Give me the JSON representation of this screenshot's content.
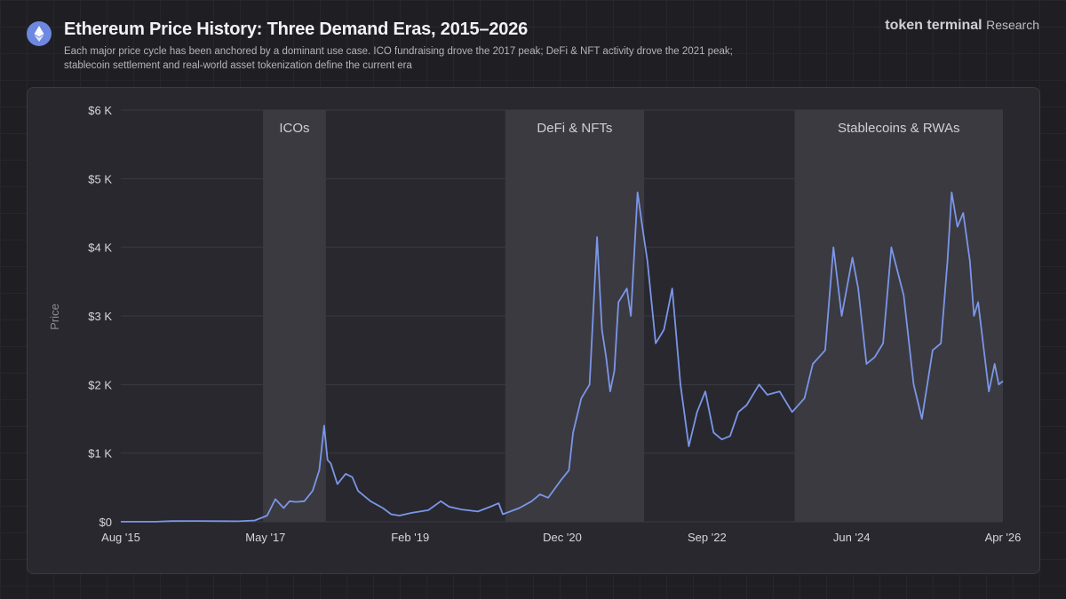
{
  "header": {
    "title": "Ethereum Price History: Three Demand Eras, 2015–2026",
    "subtitle": "Each major price cycle has been anchored by a dominant use case. ICO fundraising drove the 2017 peak; DeFi & NFT activity drove the 2021 peak; stablecoin settlement and real-world asset tokenization define the current era",
    "logo_icon": "ethereum-icon",
    "brand_name": "token terminal",
    "brand_suffix": "Research"
  },
  "chart_data": {
    "type": "line",
    "title": "Ethereum Price History: Three Demand Eras, 2015–2026",
    "ylabel": "Price",
    "xlabel": "",
    "xlim": [
      "2015-08",
      "2026-04"
    ],
    "ylim": [
      0,
      6000
    ],
    "grid": "horizontal",
    "line_color": "#7b96e8",
    "band_color": "#3a3a40",
    "y_ticks": [
      "$0",
      "$1 K",
      "$2 K",
      "$3 K",
      "$4 K",
      "$5 K",
      "$6 K"
    ],
    "y_tick_values": [
      0,
      1000,
      2000,
      3000,
      4000,
      5000,
      6000
    ],
    "x_ticks": [
      "Aug '15",
      "May '17",
      "Feb '19",
      "Dec '20",
      "Sep '22",
      "Jun '24",
      "Apr '26"
    ],
    "x_tick_values": [
      2015.58,
      2017.33,
      2019.08,
      2020.92,
      2022.67,
      2024.42,
      2026.25
    ],
    "eras": [
      {
        "label": "ICOs",
        "start": 2017.3,
        "end": 2018.06
      },
      {
        "label": "DeFi & NFTs",
        "start": 2020.23,
        "end": 2021.91
      },
      {
        "label": "Stablecoins & RWAs",
        "start": 2023.73,
        "end": 2026.25
      }
    ],
    "series": [
      {
        "x": [
          2015.58,
          2016.0,
          2016.2,
          2016.5,
          2017.0,
          2017.2,
          2017.35,
          2017.45,
          2017.55,
          2017.62,
          2017.7,
          2017.8,
          2017.9,
          2017.98,
          2018.04,
          2018.08,
          2018.12,
          2018.2,
          2018.3,
          2018.38,
          2018.45,
          2018.6,
          2018.75,
          2018.85,
          2018.95,
          2019.1,
          2019.3,
          2019.45,
          2019.55,
          2019.7,
          2019.9,
          2020.05,
          2020.15,
          2020.2,
          2020.4,
          2020.55,
          2020.65,
          2020.75,
          2020.9,
          2021.0,
          2021.05,
          2021.15,
          2021.25,
          2021.34,
          2021.4,
          2021.45,
          2021.5,
          2021.55,
          2021.6,
          2021.7,
          2021.75,
          2021.83,
          2021.9,
          2021.95,
          2022.05,
          2022.15,
          2022.25,
          2022.35,
          2022.45,
          2022.55,
          2022.65,
          2022.75,
          2022.85,
          2022.95,
          2023.05,
          2023.15,
          2023.3,
          2023.4,
          2023.55,
          2023.7,
          2023.85,
          2023.95,
          2024.1,
          2024.2,
          2024.3,
          2024.43,
          2024.5,
          2024.6,
          2024.7,
          2024.8,
          2024.9,
          2025.05,
          2025.17,
          2025.27,
          2025.4,
          2025.5,
          2025.58,
          2025.63,
          2025.7,
          2025.77,
          2025.85,
          2025.9,
          2025.95,
          2026.02,
          2026.08,
          2026.15,
          2026.2,
          2026.25
        ],
        "y": [
          1,
          1,
          10,
          12,
          8,
          20,
          90,
          330,
          200,
          300,
          290,
          300,
          450,
          750,
          1400,
          900,
          850,
          550,
          700,
          650,
          450,
          300,
          200,
          110,
          90,
          130,
          170,
          300,
          220,
          180,
          150,
          220,
          270,
          110,
          200,
          300,
          400,
          350,
          600,
          750,
          1300,
          1800,
          2000,
          4150,
          2800,
          2400,
          1900,
          2200,
          3200,
          3400,
          3000,
          4800,
          4200,
          3800,
          2600,
          2800,
          3400,
          2000,
          1100,
          1600,
          1900,
          1300,
          1200,
          1250,
          1600,
          1700,
          2000,
          1850,
          1900,
          1600,
          1800,
          2300,
          2500,
          4000,
          3000,
          3850,
          3400,
          2300,
          2400,
          2600,
          4000,
          3300,
          2000,
          1500,
          2500,
          2600,
          3800,
          4800,
          4300,
          4500,
          3800,
          3000,
          3200,
          2500,
          1900,
          2300,
          2000,
          2050
        ]
      }
    ]
  }
}
